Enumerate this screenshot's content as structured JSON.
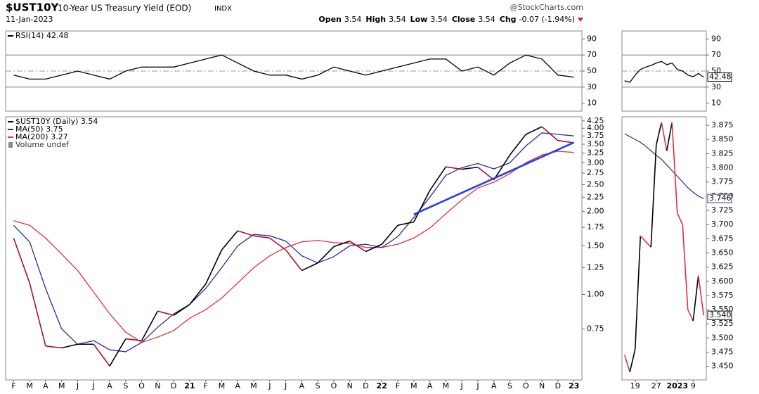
{
  "header": {
    "symbol": "$UST10Y",
    "title": "10-Year US Treasury Yield (EOD)",
    "exchange": "INDX",
    "source": "@StockCharts.com",
    "date": "11-Jan-2023",
    "quote": [
      {
        "label": "Open",
        "value": "3.54"
      },
      {
        "label": "High",
        "value": "3.54"
      },
      {
        "label": "Low",
        "value": "3.54"
      },
      {
        "label": "Close",
        "value": "3.54"
      },
      {
        "label": "Chg",
        "value": "-0.07 (-1.94%)"
      }
    ]
  },
  "chart_data": [
    {
      "type": "line",
      "legend": true,
      "series": [
        {
          "name": "RSI(14) 42.48",
          "color": "#000000",
          "values": [
            45,
            40,
            40,
            45,
            50,
            45,
            40,
            50,
            55,
            55,
            55,
            60,
            65,
            70,
            60,
            50,
            45,
            45,
            40,
            45,
            55,
            50,
            45,
            50,
            55,
            60,
            65,
            65,
            50,
            55,
            45,
            60,
            70,
            65,
            45,
            42.48
          ]
        }
      ],
      "ylim": [
        0,
        100
      ],
      "yticks": [
        10,
        30,
        50,
        70,
        90
      ],
      "overbought": 70,
      "oversold": 30,
      "centerline": 50
    },
    {
      "type": "line",
      "legend": true,
      "log_scale": true,
      "volume_label": "Volume undef",
      "categories": [
        "F",
        "M",
        "A",
        "M",
        "J",
        "J",
        "A",
        "S",
        "O",
        "N",
        "D",
        "21",
        "F",
        "M",
        "A",
        "M",
        "J",
        "J",
        "A",
        "S",
        "O",
        "N",
        "D",
        "22",
        "F",
        "M",
        "A",
        "M",
        "J",
        "J",
        "A",
        "S",
        "O",
        "N",
        "D",
        "23"
      ],
      "series": [
        {
          "name": "$UST10Y (Daily) 3.54",
          "color": "#000000",
          "down_color": "#a8102e",
          "values": [
            1.6,
            1.1,
            0.65,
            0.64,
            0.66,
            0.66,
            0.55,
            0.69,
            0.68,
            0.87,
            0.84,
            0.92,
            1.09,
            1.45,
            1.7,
            1.63,
            1.6,
            1.45,
            1.22,
            1.3,
            1.49,
            1.56,
            1.43,
            1.52,
            1.78,
            1.83,
            2.38,
            2.9,
            2.84,
            2.89,
            2.6,
            3.2,
            3.8,
            4.05,
            3.61,
            3.54
          ]
        },
        {
          "name": "MA(50) 3.75",
          "color": "#2b2b9c",
          "values": [
            1.78,
            1.55,
            1.05,
            0.75,
            0.66,
            0.68,
            0.63,
            0.62,
            0.67,
            0.76,
            0.85,
            0.92,
            1.05,
            1.25,
            1.5,
            1.65,
            1.63,
            1.56,
            1.38,
            1.3,
            1.37,
            1.5,
            1.52,
            1.48,
            1.62,
            1.9,
            2.25,
            2.7,
            2.88,
            2.98,
            2.85,
            3.0,
            3.45,
            3.85,
            3.8,
            3.75
          ]
        },
        {
          "name": "MA(200) 3.27",
          "color": "#e0303e",
          "values": [
            1.85,
            1.78,
            1.6,
            1.4,
            1.22,
            1.02,
            0.85,
            0.73,
            0.67,
            0.7,
            0.74,
            0.82,
            0.88,
            0.97,
            1.1,
            1.25,
            1.38,
            1.48,
            1.55,
            1.57,
            1.54,
            1.53,
            1.48,
            1.48,
            1.52,
            1.6,
            1.74,
            1.96,
            2.2,
            2.43,
            2.55,
            2.74,
            3.0,
            3.2,
            3.3,
            3.27
          ]
        }
      ],
      "trendline": {
        "color": "#2a3fe8",
        "values": [
          null,
          null,
          null,
          null,
          null,
          null,
          null,
          null,
          null,
          null,
          null,
          null,
          null,
          null,
          null,
          null,
          null,
          null,
          null,
          null,
          null,
          null,
          null,
          null,
          null,
          1.95,
          null,
          null,
          null,
          null,
          null,
          null,
          null,
          null,
          null,
          3.55
        ]
      },
      "ylim": [
        0.49,
        4.4
      ],
      "yticks": [
        0.75,
        {
          "value": 1,
          "label": "1.00"
        },
        1.25,
        {
          "value": 1.5,
          "label": "1.50"
        },
        1.75,
        {
          "value": 2,
          "label": "2.00"
        },
        2.25,
        {
          "value": 2.5,
          "label": "2.50"
        },
        2.75,
        {
          "value": 3,
          "label": "3.00"
        },
        3.25,
        {
          "value": 3.5,
          "label": "3.50"
        },
        3.75,
        {
          "value": 4,
          "label": "4.00"
        },
        4.25
      ]
    },
    {
      "type": "line",
      "legend": false,
      "series": [
        {
          "name": "RSI(14)",
          "color": "#000000",
          "values": [
            38,
            36,
            45,
            52,
            55,
            57,
            60,
            62,
            58,
            60,
            52,
            50,
            45,
            43,
            47,
            42.48
          ],
          "last_label": "42.48"
        }
      ],
      "ylim": [
        0,
        100
      ],
      "yticks": [
        10,
        30,
        50,
        70,
        90
      ],
      "overbought": 70,
      "oversold": 30,
      "centerline": 50
    },
    {
      "type": "line",
      "legend": false,
      "categories": [
        null,
        null,
        "19",
        null,
        null,
        null,
        "27",
        null,
        null,
        null,
        "2023",
        null,
        null,
        "9",
        null,
        null
      ],
      "series": [
        {
          "name": "$UST10Y",
          "color": "#000000",
          "down_color": "#e0303e",
          "values": [
            3.47,
            3.44,
            3.48,
            3.68,
            3.67,
            3.66,
            3.84,
            3.88,
            3.83,
            3.88,
            3.72,
            3.7,
            3.55,
            3.53,
            3.61,
            3.54
          ],
          "last_label": "3.540"
        },
        {
          "name": "MA(50)",
          "color": "#3a3a9c",
          "values": [
            3.86,
            3.855,
            3.85,
            3.845,
            3.838,
            3.83,
            3.822,
            3.815,
            3.805,
            3.795,
            3.785,
            3.775,
            3.765,
            3.757,
            3.75,
            3.746
          ],
          "last_label": "3.746"
        }
      ],
      "ylim": [
        3.426,
        3.89
      ],
      "yticks": [
        {
          "value": 3.45,
          "label": "3.450"
        },
        {
          "value": 3.475,
          "label": "3.475"
        },
        {
          "value": 3.5,
          "label": "3.500"
        },
        {
          "value": 3.525,
          "label": "3.525"
        },
        {
          "value": 3.55,
          "label": "3.550"
        },
        {
          "value": 3.575,
          "label": "3.575"
        },
        {
          "value": 3.6,
          "label": "3.600"
        },
        {
          "value": 3.625,
          "label": "3.625"
        },
        {
          "value": 3.65,
          "label": "3.650"
        },
        {
          "value": 3.675,
          "label": "3.675"
        },
        {
          "value": 3.7,
          "label": "3.700"
        },
        {
          "value": 3.725,
          "label": "3.725"
        },
        {
          "value": 3.75,
          "label": "3.750"
        },
        {
          "value": 3.775,
          "label": "3.775"
        },
        {
          "value": 3.8,
          "label": "3.800"
        },
        {
          "value": 3.825,
          "label": "3.825"
        },
        {
          "value": 3.85,
          "label": "3.850"
        },
        {
          "value": 3.875,
          "label": "3.875"
        }
      ]
    }
  ]
}
